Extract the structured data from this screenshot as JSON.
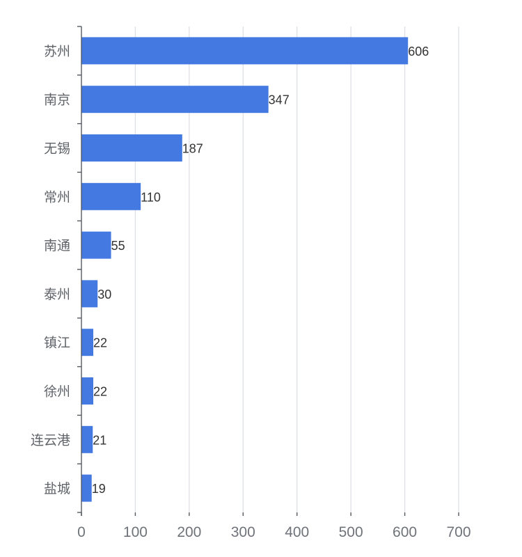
{
  "chart_data": {
    "type": "bar",
    "orientation": "horizontal",
    "categories": [
      "苏州",
      "南京",
      "无锡",
      "常州",
      "南通",
      "泰州",
      "镇江",
      "徐州",
      "连云港",
      "盐城"
    ],
    "values": [
      606,
      347,
      187,
      110,
      55,
      30,
      22,
      22,
      21,
      19
    ],
    "x_ticks": [
      "0",
      "100",
      "200",
      "300",
      "400",
      "500",
      "600",
      "700"
    ],
    "xlim": [
      0,
      700
    ],
    "grid": true,
    "bar_color": "#4479e2",
    "title": "",
    "xlabel": "",
    "ylabel": ""
  }
}
